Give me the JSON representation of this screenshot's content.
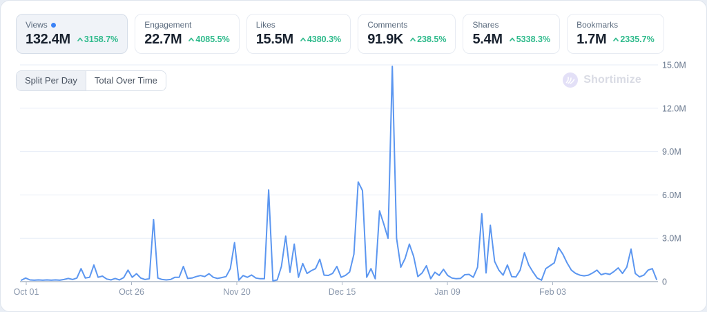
{
  "metrics": {
    "cards": [
      {
        "id": "views",
        "label": "Views",
        "value": "132.4M",
        "trend": "3158.7%",
        "selected": true
      },
      {
        "id": "engagement",
        "label": "Engagement",
        "value": "22.7M",
        "trend": "4085.5%",
        "selected": false
      },
      {
        "id": "likes",
        "label": "Likes",
        "value": "15.5M",
        "trend": "4380.3%",
        "selected": false
      },
      {
        "id": "comments",
        "label": "Comments",
        "value": "91.9K",
        "trend": "238.5%",
        "selected": false
      },
      {
        "id": "shares",
        "label": "Shares",
        "value": "5.4M",
        "trend": "5338.3%",
        "selected": false
      },
      {
        "id": "bookmarks",
        "label": "Bookmarks",
        "value": "1.7M",
        "trend": "2335.7%",
        "selected": false
      }
    ],
    "trend_direction": "up",
    "trend_color": "#2eba8b",
    "selected_dot_color": "#3b82f6"
  },
  "view_toggle": {
    "options": [
      {
        "label": "Split Per Day",
        "active": true
      },
      {
        "label": "Total Over Time",
        "active": false
      }
    ]
  },
  "watermark": {
    "label": "Shortimize"
  },
  "chart_data": {
    "type": "line",
    "title": "",
    "xlabel": "",
    "ylabel": "",
    "unit": "millions of views per day",
    "ylim": [
      0,
      15
    ],
    "grid": true,
    "legend": "none",
    "x_ticks": [
      {
        "day": 0,
        "label": "Oct 01"
      },
      {
        "day": 25,
        "label": "Oct 26"
      },
      {
        "day": 50,
        "label": "Nov 20"
      },
      {
        "day": 75,
        "label": "Dec 15"
      },
      {
        "day": 100,
        "label": "Jan 09"
      },
      {
        "day": 125,
        "label": "Feb 03"
      }
    ],
    "y_ticks": [
      {
        "value": 0,
        "label": "0"
      },
      {
        "value": 3,
        "label": "3.0M"
      },
      {
        "value": 6,
        "label": "6.0M"
      },
      {
        "value": 9,
        "label": "9.0M"
      },
      {
        "value": 12,
        "label": "12.0M"
      },
      {
        "value": 15,
        "label": "15.0M"
      }
    ],
    "series": [
      {
        "name": "Views",
        "color": "#5b96f0",
        "values": [
          0.1,
          0.25,
          0.12,
          0.1,
          0.12,
          0.1,
          0.12,
          0.1,
          0.12,
          0.1,
          0.15,
          0.22,
          0.15,
          0.25,
          0.9,
          0.25,
          0.3,
          1.15,
          0.3,
          0.38,
          0.18,
          0.12,
          0.22,
          0.12,
          0.28,
          0.8,
          0.3,
          0.55,
          0.25,
          0.15,
          0.2,
          4.3,
          0.25,
          0.15,
          0.12,
          0.15,
          0.3,
          0.3,
          1.05,
          0.22,
          0.25,
          0.35,
          0.42,
          0.35,
          0.55,
          0.3,
          0.22,
          0.28,
          0.35,
          0.9,
          2.7,
          0.1,
          0.42,
          0.3,
          0.46,
          0.25,
          0.2,
          0.2,
          6.35,
          0.05,
          0.12,
          1.05,
          3.15,
          0.65,
          2.6,
          0.3,
          1.25,
          0.57,
          0.76,
          0.9,
          1.55,
          0.45,
          0.43,
          0.57,
          1.05,
          0.3,
          0.43,
          0.67,
          1.9,
          6.9,
          6.3,
          0.3,
          0.9,
          0.2,
          4.9,
          4.0,
          3.0,
          14.9,
          3.0,
          1.0,
          1.6,
          2.6,
          1.75,
          0.35,
          0.6,
          1.1,
          0.2,
          0.65,
          0.43,
          0.85,
          0.43,
          0.25,
          0.2,
          0.22,
          0.48,
          0.5,
          0.3,
          1.0,
          4.7,
          0.6,
          3.9,
          1.4,
          0.8,
          0.45,
          1.15,
          0.35,
          0.32,
          0.8,
          2.0,
          1.15,
          0.67,
          0.25,
          0.1,
          0.9,
          1.1,
          1.3,
          2.35,
          1.9,
          1.3,
          0.8,
          0.57,
          0.45,
          0.4,
          0.45,
          0.6,
          0.8,
          0.48,
          0.57,
          0.5,
          0.7,
          0.95,
          0.57,
          1.0,
          2.25,
          0.57,
          0.33,
          0.45,
          0.8,
          0.9,
          0.15
        ]
      }
    ]
  }
}
